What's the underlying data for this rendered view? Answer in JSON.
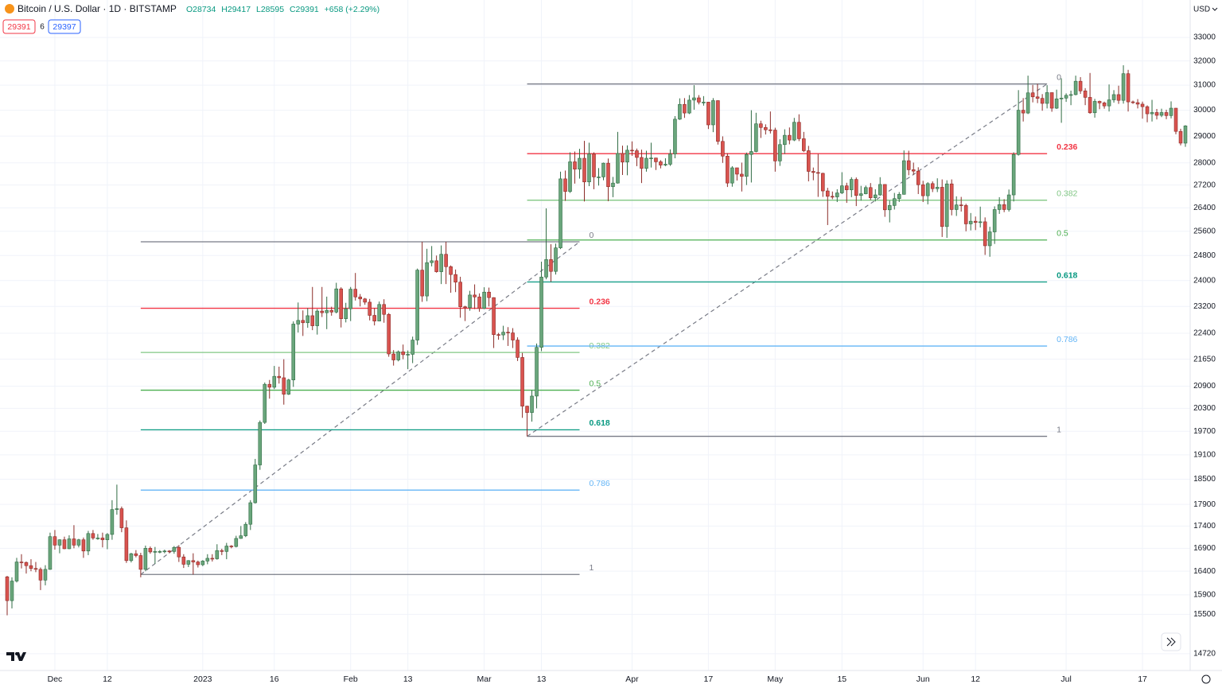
{
  "chart_data": {
    "type": "candlestick",
    "title": "Bitcoin / U.S. Dollar · 1D · BITSTAMP",
    "ohlc_text": [
      "O28734",
      "H29417",
      "L28595",
      "C29391",
      "+658 (+2.29%)"
    ],
    "bid": "29391",
    "spread": "6",
    "ask": "29397",
    "currency": "USD",
    "log_scale": true,
    "grid": true,
    "up_color": "#6aa67c",
    "up_border": "#2f6b43",
    "down_color": "#d9534f",
    "down_border": "#8b2b27",
    "xlim": [
      -1.5,
      248
    ],
    "ylim": [
      14400,
      34660
    ],
    "xticks": [
      {
        "value": 10,
        "label": "Dec"
      },
      {
        "value": 21,
        "label": "12"
      },
      {
        "value": 41,
        "label": "2023"
      },
      {
        "value": 56,
        "label": "16"
      },
      {
        "value": 72,
        "label": "Feb"
      },
      {
        "value": 84,
        "label": "13"
      },
      {
        "value": 100,
        "label": "Mar"
      },
      {
        "value": 112,
        "label": "13"
      },
      {
        "value": 131,
        "label": "Apr"
      },
      {
        "value": 147,
        "label": "17"
      },
      {
        "value": 161,
        "label": "May"
      },
      {
        "value": 175,
        "label": "15"
      },
      {
        "value": 192,
        "label": "Jun"
      },
      {
        "value": 203,
        "label": "12"
      },
      {
        "value": 222,
        "label": "Jul"
      },
      {
        "value": 238,
        "label": "17"
      }
    ],
    "yticks": [
      33000,
      32000,
      31000,
      30000,
      29000,
      28000,
      27200,
      26400,
      25600,
      24800,
      24000,
      23200,
      22400,
      21650,
      20900,
      20300,
      19700,
      19100,
      18500,
      17900,
      17400,
      16900,
      16400,
      15900,
      15500,
      14720
    ],
    "candles": {
      "open": [
        16280,
        15780,
        16190,
        16600,
        16590,
        16520,
        16460,
        16440,
        16210,
        16440,
        17160,
        16970,
        17090,
        16890,
        17110,
        16970,
        17090,
        16840,
        17230,
        17130,
        17130,
        17090,
        17210,
        17780,
        17800,
        17360,
        16630,
        16780,
        16740,
        16440,
        16900,
        16820,
        16830,
        16830,
        16840,
        16830,
        16920,
        16710,
        16550,
        16630,
        16600,
        16540,
        16620,
        16680,
        16670,
        16850,
        16830,
        16950,
        16940,
        17120,
        17180,
        17440,
        17940,
        18850,
        19930,
        20950,
        20870,
        21170,
        21130,
        20680,
        21070,
        22670,
        22780,
        22710,
        22920,
        22620,
        23060,
        23010,
        23080,
        23030,
        23740,
        22830,
        23130,
        23730,
        23490,
        23430,
        23330,
        22930,
        22760,
        23260,
        22960,
        21800,
        21630,
        21860,
        21780,
        21790,
        22200,
        24330,
        23520,
        24570,
        24630,
        24280,
        24840,
        24440,
        24190,
        23950,
        23190,
        23160,
        23550,
        23490,
        23140,
        23640,
        23470,
        22360,
        22350,
        22430,
        22410,
        22200,
        21700,
        20360,
        20190,
        20630,
        21990,
        24110,
        24670,
        24290,
        25050,
        27420,
        26970,
        28040,
        27770,
        28170,
        27310,
        28330,
        27490,
        27490,
        27990,
        27140,
        27270,
        28350,
        28030,
        28470,
        28450,
        28200,
        27800,
        28170,
        28180,
        28040,
        27920,
        27950,
        28330,
        29650,
        30230,
        29890,
        30400,
        30490,
        30320,
        30320,
        29430,
        30380,
        28800,
        28250,
        27270,
        27820,
        27590,
        27510,
        28310,
        28420,
        29470,
        29330,
        29240,
        29230,
        28070,
        28680,
        29030,
        28850,
        29530,
        28900,
        28450,
        27690,
        27650,
        27620,
        26990,
        26800,
        26780,
        26920,
        27170,
        27030,
        27400,
        26830,
        26890,
        27110,
        26750,
        26850,
        27220,
        26330,
        26480,
        26720,
        26870,
        28080,
        27750,
        27700,
        27210,
        26820,
        27250,
        27070,
        27120,
        25760,
        27240,
        26340,
        26500,
        26480,
        25850,
        25940,
        25900,
        25920,
        25120,
        25580,
        26340,
        26510,
        26340,
        26850,
        28310,
        30000,
        29890,
        30690,
        30530,
        30470,
        30270,
        30700,
        30080,
        30450,
        30480,
        30590,
        30620,
        31160,
        30770,
        30510,
        29900,
        30350,
        30290,
        30170,
        30410,
        30620,
        30390,
        31470,
        30330,
        30300,
        30240,
        30140,
        29860,
        29910,
        29800,
        29910,
        29790,
        30080,
        29180,
        28734
      ],
      "high": [
        16300,
        16270,
        16690,
        16770,
        16610,
        16660,
        16600,
        16480,
        16530,
        17250,
        17310,
        17100,
        17160,
        17190,
        17420,
        17110,
        17140,
        17290,
        17310,
        17220,
        17250,
        17240,
        18000,
        18370,
        17850,
        17530,
        16800,
        16860,
        16800,
        16960,
        16940,
        16930,
        16860,
        16870,
        16860,
        16950,
        16970,
        16770,
        16640,
        16790,
        16630,
        16640,
        16770,
        16770,
        16990,
        16890,
        17020,
        16970,
        17180,
        17400,
        17490,
        18000,
        19000,
        19980,
        21000,
        21070,
        21460,
        21440,
        21650,
        21100,
        22750,
        23320,
        23080,
        23150,
        23800,
        23120,
        23800,
        23500,
        23190,
        23930,
        23790,
        23310,
        23800,
        24240,
        23580,
        23460,
        23430,
        23150,
        23350,
        23420,
        23000,
        21910,
        21900,
        22070,
        21900,
        22300,
        24380,
        25250,
        25020,
        25110,
        24800,
        25130,
        25250,
        24480,
        24350,
        24120,
        23220,
        23680,
        23880,
        23600,
        23790,
        23780,
        23480,
        22410,
        22620,
        22580,
        22550,
        22280,
        21830,
        20370,
        20790,
        22100,
        24600,
        26380,
        25170,
        25190,
        27680,
        27720,
        28390,
        28420,
        28520,
        28820,
        28750,
        28390,
        27810,
        28010,
        28160,
        27490,
        29160,
        28640,
        28650,
        28800,
        28530,
        28490,
        28450,
        28750,
        28190,
        28100,
        28170,
        28500,
        29770,
        30470,
        30480,
        30600,
        31000,
        30600,
        30560,
        30330,
        30480,
        30390,
        28990,
        28360,
        27880,
        27820,
        28010,
        28380,
        30000,
        29900,
        29590,
        29450,
        29950,
        29320,
        28880,
        29260,
        29330,
        29700,
        29840,
        29160,
        28630,
        27830,
        28330,
        27640,
        27100,
        26970,
        27050,
        27660,
        27280,
        27480,
        27470,
        27170,
        27180,
        27270,
        27050,
        27480,
        27230,
        26650,
        26920,
        26950,
        28460,
        28450,
        28010,
        27840,
        27350,
        27300,
        27330,
        27440,
        27400,
        27370,
        27400,
        26800,
        26780,
        26540,
        26220,
        26100,
        26440,
        26070,
        25750,
        26450,
        26770,
        26700,
        27040,
        28390,
        30800,
        30480,
        31390,
        31010,
        31050,
        30640,
        31000,
        30700,
        30820,
        31280,
        30670,
        30780,
        31390,
        31330,
        30880,
        31500,
        30450,
        30380,
        30340,
        31030,
        30800,
        30980,
        31820,
        31630,
        30380,
        30440,
        30340,
        30190,
        30410,
        30050,
        30060,
        30020,
        30350,
        30090,
        29280,
        29417
      ],
      "low": [
        15480,
        15620,
        16160,
        16460,
        16350,
        16400,
        16380,
        16000,
        16100,
        16430,
        16870,
        16790,
        16880,
        16880,
        16900,
        16920,
        16690,
        16750,
        17090,
        17090,
        16920,
        16880,
        17090,
        17660,
        17260,
        16580,
        16590,
        16700,
        16270,
        16400,
        16780,
        16560,
        16790,
        16790,
        16790,
        16780,
        16600,
        16470,
        16490,
        16330,
        16480,
        16510,
        16550,
        16610,
        16650,
        16750,
        16660,
        16900,
        16920,
        17110,
        17150,
        17310,
        17920,
        18730,
        19890,
        20560,
        20820,
        20970,
        20400,
        20660,
        20880,
        22420,
        22320,
        22560,
        22490,
        22360,
        22880,
        22520,
        22920,
        22990,
        22570,
        22720,
        22760,
        23380,
        23200,
        23250,
        22780,
        22630,
        22750,
        22710,
        21720,
        21470,
        21590,
        21650,
        21370,
        21540,
        22060,
        23340,
        23360,
        24450,
        24250,
        23890,
        23890,
        23620,
        23640,
        22860,
        22760,
        23070,
        23120,
        23040,
        23120,
        23200,
        21970,
        22210,
        22200,
        22030,
        21970,
        21600,
        20050,
        19570,
        19950,
        20300,
        21880,
        24040,
        23960,
        24190,
        25010,
        26640,
        26920,
        27250,
        27430,
        26620,
        27160,
        27050,
        27180,
        27370,
        26630,
        26770,
        27250,
        27560,
        27550,
        28260,
        27880,
        27270,
        27680,
        27830,
        27740,
        27800,
        27880,
        27890,
        28170,
        29620,
        29700,
        29850,
        30020,
        30230,
        30180,
        29270,
        29150,
        28680,
        28000,
        27130,
        27140,
        27360,
        26970,
        27200,
        27290,
        28390,
        28930,
        29060,
        29100,
        27680,
        27890,
        28330,
        28690,
        28810,
        28810,
        28400,
        27330,
        27370,
        26780,
        26780,
        25810,
        26700,
        26600,
        26880,
        26570,
        26770,
        26460,
        26650,
        26870,
        26670,
        26620,
        26820,
        26090,
        25900,
        26340,
        26600,
        26860,
        27550,
        27570,
        26880,
        26600,
        26520,
        26950,
        26950,
        25410,
        25380,
        26140,
        26120,
        26270,
        25600,
        25630,
        25640,
        25730,
        24820,
        24760,
        25180,
        26190,
        26250,
        26270,
        26620,
        28270,
        29560,
        29850,
        30310,
        30280,
        29980,
        30070,
        29940,
        30050,
        29510,
        30330,
        30200,
        30590,
        30650,
        30200,
        29860,
        29710,
        30040,
        30060,
        29950,
        30300,
        30250,
        30260,
        29950,
        30250,
        30070,
        29670,
        29530,
        29560,
        29640,
        29730,
        29650,
        29680,
        29070,
        28650,
        28595
      ],
      "close": [
        15780,
        16190,
        16600,
        16590,
        16520,
        16460,
        16440,
        16210,
        16440,
        17160,
        16970,
        17090,
        16890,
        17110,
        16970,
        17090,
        16840,
        17230,
        17130,
        17130,
        17090,
        17210,
        17780,
        17800,
        17360,
        16630,
        16780,
        16740,
        16440,
        16900,
        16820,
        16830,
        16830,
        16840,
        16830,
        16920,
        16710,
        16550,
        16630,
        16600,
        16540,
        16620,
        16680,
        16670,
        16850,
        16830,
        16950,
        16940,
        17120,
        17180,
        17440,
        17940,
        18850,
        19930,
        20950,
        20870,
        21170,
        21130,
        20680,
        21070,
        22670,
        22780,
        22710,
        22920,
        22620,
        23060,
        23010,
        23080,
        23030,
        23740,
        22830,
        23130,
        23730,
        23490,
        23430,
        23330,
        22930,
        22760,
        23260,
        22960,
        21800,
        21630,
        21860,
        21780,
        21790,
        22200,
        24330,
        23520,
        24570,
        24630,
        24280,
        24840,
        24440,
        24190,
        23950,
        23190,
        23160,
        23550,
        23490,
        23140,
        23640,
        23470,
        22360,
        22350,
        22430,
        22410,
        22200,
        21700,
        20360,
        20190,
        20630,
        21990,
        24110,
        24670,
        24290,
        25050,
        27420,
        26970,
        28040,
        27770,
        28170,
        27310,
        28330,
        27490,
        27490,
        27990,
        27140,
        27270,
        28350,
        28030,
        28470,
        28450,
        28200,
        27800,
        28170,
        28180,
        28040,
        27920,
        27950,
        28330,
        29650,
        30230,
        29890,
        30400,
        30490,
        30320,
        30320,
        29430,
        30380,
        28800,
        28250,
        27270,
        27820,
        27590,
        27510,
        28310,
        28420,
        29470,
        29330,
        29240,
        29230,
        28070,
        28680,
        29030,
        28850,
        29530,
        28900,
        28450,
        27690,
        27650,
        27620,
        26990,
        26800,
        26780,
        26920,
        27170,
        27030,
        27400,
        26830,
        26890,
        27110,
        26750,
        26850,
        27220,
        26330,
        26480,
        26720,
        26870,
        28080,
        27750,
        27700,
        27210,
        26820,
        27250,
        27070,
        27120,
        25760,
        27240,
        26340,
        26500,
        26480,
        25850,
        25940,
        25900,
        25920,
        25120,
        25580,
        26340,
        26510,
        26340,
        26850,
        28310,
        30000,
        29890,
        30690,
        30530,
        30470,
        30270,
        30700,
        30080,
        30450,
        30480,
        30590,
        30620,
        31160,
        30770,
        30510,
        29900,
        30350,
        30290,
        30170,
        30410,
        30620,
        30390,
        31470,
        30330,
        30300,
        30240,
        30140,
        29860,
        29910,
        29800,
        29910,
        29790,
        30080,
        29180,
        28734,
        29391
      ]
    },
    "fibs": [
      {
        "price_0": 25250,
        "price_1": 16330,
        "levels": [
          {
            "ratio": 0,
            "color": "#787b86"
          },
          {
            "ratio": 0.236,
            "color": "#f23645"
          },
          {
            "ratio": 0.382,
            "color": "#81c784"
          },
          {
            "ratio": 0.5,
            "color": "#4caf50"
          },
          {
            "ratio": 0.618,
            "color": "#089981"
          },
          {
            "ratio": 0.786,
            "color": "#64b5f6"
          },
          {
            "ratio": 1,
            "color": "#787b86"
          }
        ]
      },
      {
        "price_0": 31050,
        "price_1": 19570,
        "levels": [
          {
            "ratio": 0,
            "color": "#787b86"
          },
          {
            "ratio": 0.236,
            "color": "#f23645"
          },
          {
            "ratio": 0.382,
            "color": "#81c784"
          },
          {
            "ratio": 0.5,
            "color": "#4caf50"
          },
          {
            "ratio": 0.618,
            "color": "#089981"
          },
          {
            "ratio": 0.786,
            "color": "#64b5f6"
          },
          {
            "ratio": 1,
            "color": "#787b86"
          }
        ]
      }
    ]
  }
}
